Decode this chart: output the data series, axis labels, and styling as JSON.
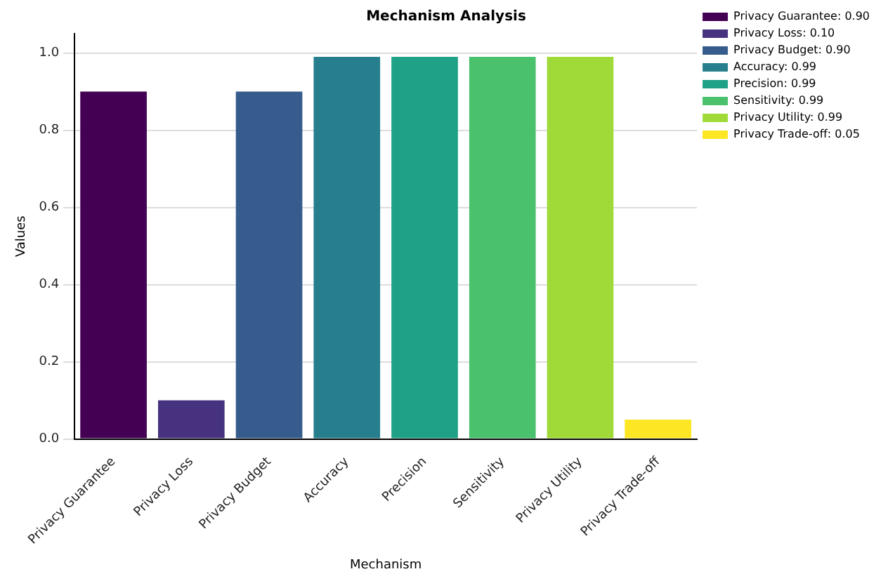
{
  "chart_data": {
    "type": "bar",
    "title": "Mechanism Analysis",
    "xlabel": "Mechanism",
    "ylabel": "Values",
    "categories": [
      "Privacy Guarantee",
      "Privacy Loss",
      "Privacy Budget",
      "Accuracy",
      "Precision",
      "Sensitivity",
      "Privacy Utility",
      "Privacy Trade-off"
    ],
    "series": [
      {
        "name": "Privacy Guarantee: 0.90",
        "color": "#440154",
        "values": [
          0.9,
          null,
          null,
          null,
          null,
          null,
          null,
          null
        ]
      },
      {
        "name": "Privacy Loss: 0.10",
        "color": "#46327e",
        "values": [
          null,
          0.1,
          null,
          null,
          null,
          null,
          null,
          null
        ]
      },
      {
        "name": "Privacy Budget: 0.90",
        "color": "#365c8d",
        "values": [
          null,
          null,
          0.9,
          null,
          null,
          null,
          null,
          null
        ]
      },
      {
        "name": "Accuracy: 0.99",
        "color": "#277f8e",
        "values": [
          null,
          null,
          null,
          0.99,
          null,
          null,
          null,
          null
        ]
      },
      {
        "name": "Precision: 0.99",
        "color": "#1fa187",
        "values": [
          null,
          null,
          null,
          null,
          0.99,
          null,
          null,
          null
        ]
      },
      {
        "name": "Sensitivity: 0.99",
        "color": "#4ac16d",
        "values": [
          null,
          null,
          null,
          null,
          null,
          0.99,
          null,
          null
        ]
      },
      {
        "name": "Privacy Utility: 0.99",
        "color": "#a0da39",
        "values": [
          null,
          null,
          null,
          null,
          null,
          null,
          0.99,
          null
        ]
      },
      {
        "name": "Privacy Trade-off: 0.05",
        "color": "#fde725",
        "values": [
          null,
          null,
          null,
          null,
          null,
          null,
          null,
          0.05
        ]
      }
    ],
    "ylim": [
      0,
      1.05
    ],
    "yticks": [
      {
        "value": 0,
        "label": "0.0"
      },
      {
        "value": 0.2,
        "label": "0.2"
      },
      {
        "value": 0.4,
        "label": "0.4"
      },
      {
        "value": 0.6,
        "label": "0.6"
      },
      {
        "value": 0.8,
        "label": "0.8"
      },
      {
        "value": 1,
        "label": "1.0"
      }
    ],
    "grid": "y",
    "legend": "top right"
  }
}
